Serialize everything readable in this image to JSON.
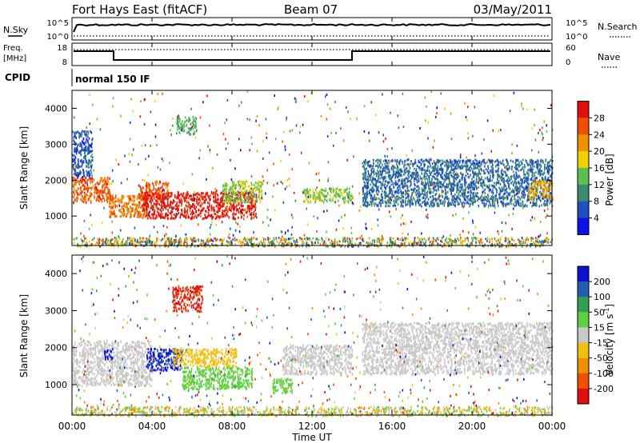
{
  "header": {
    "station": "Fort Hays East (fitACF)",
    "beam": "Beam 07",
    "date": "03/May/2011"
  },
  "noise_panel": {
    "left_label": "N.Sky",
    "right_label": "N.Search",
    "left_ticks": [
      "10^5",
      "10^0"
    ],
    "right_ticks": [
      "10^5",
      "10^0"
    ]
  },
  "freq_panel": {
    "left_label_line1": "Freq.",
    "left_label_line2": "[MHz]",
    "right_label": "Nave",
    "left_ticks": [
      "18",
      "8"
    ],
    "right_ticks": [
      "60",
      "0"
    ]
  },
  "cpid_panel": {
    "label": "CPID",
    "mode": "normal 150 IF"
  },
  "x_axis": {
    "label": "Time UT",
    "ticks": [
      "00:00",
      "04:00",
      "08:00",
      "12:00",
      "16:00",
      "20:00",
      "00:00"
    ]
  },
  "colors": {
    "power_scale": [
      "#1010e8",
      "#2050c0",
      "#3a8a70",
      "#5cc050",
      "#f0d000",
      "#f09000",
      "#f05000",
      "#e01010"
    ],
    "velocity_scale": [
      "#1010d0",
      "#2060b0",
      "#30a050",
      "#60d040",
      "#c8c8c8",
      "#f0c010",
      "#f09000",
      "#f05000",
      "#e01010"
    ]
  },
  "chart_data": [
    {
      "type": "heatmap",
      "name": "power",
      "xlabel": "Time UT",
      "ylabel": "Slant Range [km]",
      "x_ticks": [
        "00:00",
        "04:00",
        "08:00",
        "12:00",
        "16:00",
        "20:00",
        "00:00"
      ],
      "xlim_hours": [
        0,
        24
      ],
      "y_ticks": [
        1000,
        2000,
        3000,
        4000
      ],
      "ylim": [
        180,
        4500
      ],
      "colorbar": {
        "label": "Power [dB]",
        "ticks": [
          4,
          8,
          12,
          16,
          20,
          24,
          28
        ],
        "range": [
          0,
          30
        ]
      },
      "regions": [
        {
          "t": [
            0.0,
            1.9
          ],
          "r": [
            1400,
            2100
          ],
          "value": 24
        },
        {
          "t": [
            0.0,
            1.0
          ],
          "r": [
            2100,
            3400
          ],
          "value": 6
        },
        {
          "t": [
            1.8,
            3.8
          ],
          "r": [
            1000,
            1600
          ],
          "value": 22
        },
        {
          "t": [
            3.3,
            4.8
          ],
          "r": [
            1500,
            2000
          ],
          "value": 24
        },
        {
          "t": [
            3.5,
            9.2
          ],
          "r": [
            950,
            1700
          ],
          "value": 28
        },
        {
          "t": [
            5.2,
            6.2
          ],
          "r": [
            3300,
            3800
          ],
          "value": 12
        },
        {
          "t": [
            7.5,
            9.5
          ],
          "r": [
            1400,
            2000
          ],
          "value": 14
        },
        {
          "t": [
            11.5,
            14.0
          ],
          "r": [
            1400,
            1800
          ],
          "value": 14
        },
        {
          "t": [
            14.5,
            24.0
          ],
          "r": [
            1300,
            2600
          ],
          "value": 7
        },
        {
          "t": [
            22.8,
            24.0
          ],
          "r": [
            1500,
            2000
          ],
          "value": 20
        }
      ]
    },
    {
      "type": "heatmap",
      "name": "velocity",
      "xlabel": "Time UT",
      "ylabel": "Slant Range [km]",
      "x_ticks": [
        "00:00",
        "04:00",
        "08:00",
        "12:00",
        "16:00",
        "20:00",
        "00:00"
      ],
      "xlim_hours": [
        0,
        24
      ],
      "y_ticks": [
        1000,
        2000,
        3000,
        4000
      ],
      "ylim": [
        180,
        4500
      ],
      "colorbar": {
        "label": "Velocity [m s^-1]",
        "ticks": [
          200,
          100,
          50,
          15,
          -15,
          -50,
          -100,
          -200
        ],
        "range": [
          -250,
          250
        ]
      },
      "regions": [
        {
          "t": [
            0.0,
            4.0
          ],
          "r": [
            1000,
            2200
          ],
          "value": 0
        },
        {
          "t": [
            1.6,
            2.0
          ],
          "r": [
            1700,
            2000
          ],
          "value": 250
        },
        {
          "t": [
            3.7,
            5.5
          ],
          "r": [
            1400,
            2000
          ],
          "value": 200
        },
        {
          "t": [
            5.0,
            8.2
          ],
          "r": [
            1500,
            2000
          ],
          "value": -60
        },
        {
          "t": [
            5.5,
            9.0
          ],
          "r": [
            900,
            1500
          ],
          "value": 50
        },
        {
          "t": [
            5.0,
            6.5
          ],
          "r": [
            3000,
            3700
          ],
          "value": -200
        },
        {
          "t": [
            10.0,
            11.0
          ],
          "r": [
            800,
            1200
          ],
          "value": 50
        },
        {
          "t": [
            10.5,
            14.0
          ],
          "r": [
            1300,
            2100
          ],
          "value": 0
        },
        {
          "t": [
            14.5,
            24.0
          ],
          "r": [
            1300,
            2700
          ],
          "value": 0
        }
      ]
    }
  ]
}
